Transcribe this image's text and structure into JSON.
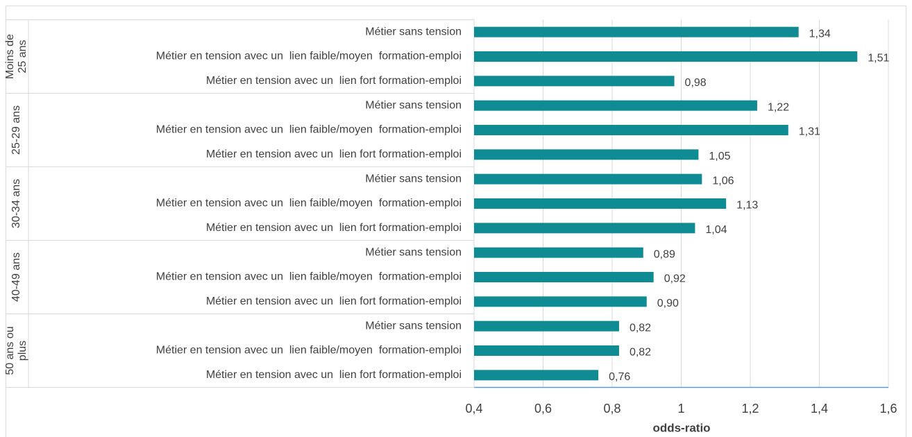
{
  "chart_data": {
    "type": "barh",
    "xlabel": "odds-ratio",
    "groups": [
      {
        "lines": [
          "Moins de",
          "25 ans"
        ]
      },
      {
        "lines": [
          "25-29 ans"
        ]
      },
      {
        "lines": [
          "30-34 ans"
        ]
      },
      {
        "lines": [
          "40-49 ans"
        ]
      },
      {
        "lines": [
          "50 ans ou",
          "plus"
        ]
      }
    ],
    "categories": [
      "Métier sans tension",
      "Métier en tension avec un  lien faible/moyen  formation-emploi",
      "Métier en tension avec un  lien fort formation-emploi",
      "Métier sans tension",
      "Métier en tension avec un  lien faible/moyen  formation-emploi",
      "Métier en tension avec un  lien fort formation-emploi",
      "Métier sans tension",
      "Métier en tension avec un  lien faible/moyen  formation-emploi",
      "Métier en tension avec un  lien fort formation-emploi",
      "Métier sans tension",
      "Métier en tension avec un  lien faible/moyen  formation-emploi",
      "Métier en tension avec un  lien fort formation-emploi",
      "Métier sans tension",
      "Métier en tension avec un  lien faible/moyen  formation-emploi",
      "Métier en tension avec un  lien fort formation-emploi"
    ],
    "values": [
      1.34,
      1.51,
      0.98,
      1.22,
      1.31,
      1.05,
      1.06,
      1.13,
      1.04,
      0.89,
      0.92,
      0.9,
      0.82,
      0.82,
      0.76
    ],
    "value_labels": [
      "1,34",
      "1,51",
      "0,98",
      "1,22",
      "1,31",
      "1,05",
      "1,06",
      "1,13",
      "1,04",
      "0,89",
      "0,92",
      "0,90",
      "0,82",
      "0,82",
      "0,76"
    ],
    "color": "#0f8b94",
    "xlim": [
      0.4,
      1.6
    ],
    "xticks": [
      {
        "value": 0.4,
        "label": "0,4"
      },
      {
        "value": 0.6,
        "label": "0,6"
      },
      {
        "value": 0.8,
        "label": "0,8"
      },
      1,
      {
        "value": 1.2,
        "label": "1,2"
      },
      {
        "value": 1.4,
        "label": "1,4"
      },
      {
        "value": 1.6,
        "label": "1,6"
      }
    ],
    "grid": true
  }
}
